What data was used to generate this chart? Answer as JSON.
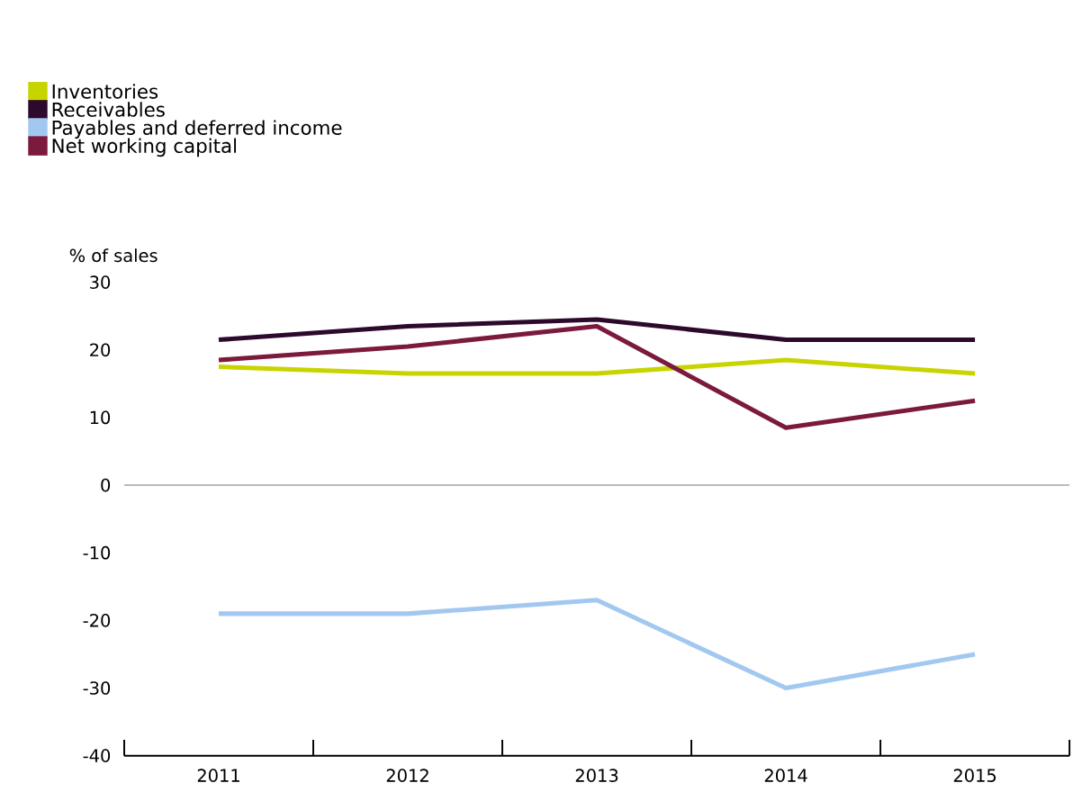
{
  "chart_data": {
    "type": "line",
    "ylabel": "% of sales",
    "categories": [
      "2011",
      "2012",
      "2013",
      "2014",
      "2015"
    ],
    "series": [
      {
        "name": "Inventories",
        "color": "#c8d400",
        "values": [
          17.5,
          16.5,
          16.5,
          18.5,
          16.5
        ]
      },
      {
        "name": "Receivables",
        "color": "#2d0a2b",
        "values": [
          21.5,
          23.5,
          24.5,
          21.5,
          21.5
        ]
      },
      {
        "name": "Payables and deferred income",
        "color": "#a3c8f0",
        "values": [
          -19,
          -19,
          -17,
          -30,
          -25
        ]
      },
      {
        "name": "Net working capital",
        "color": "#7b1a3c",
        "values": [
          18.5,
          20.5,
          23.5,
          8.5,
          12.5
        ]
      }
    ],
    "ylim": [
      -40,
      30
    ],
    "yticks": [
      -40,
      -30,
      -20,
      -10,
      0,
      10,
      20,
      30
    ],
    "ref_lines": [
      {
        "axis": "y",
        "value": 0,
        "color": "#bbbbbb"
      }
    ],
    "legend": "top left",
    "line_style": "solid",
    "marker": "none"
  }
}
